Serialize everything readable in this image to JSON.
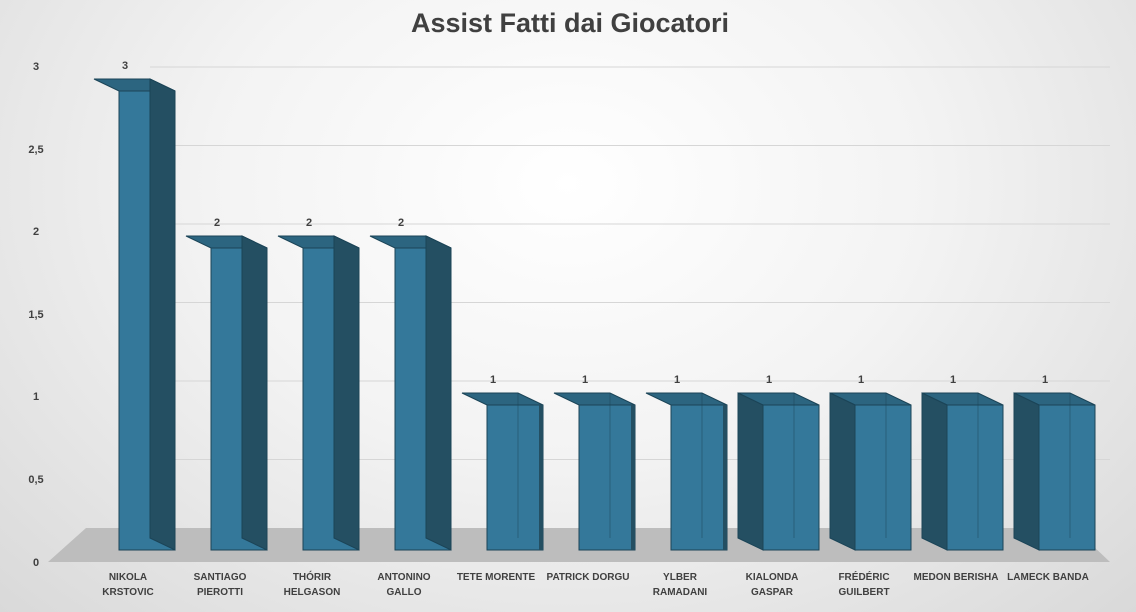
{
  "chart_data": {
    "type": "bar",
    "title": "Assist Fatti dai Giocatori",
    "xlabel": "",
    "ylabel": "",
    "categories": [
      [
        "NIKOLA",
        "KRSTOVIC"
      ],
      [
        "SANTIAGO",
        "PIEROTTI"
      ],
      [
        "THÓRIR",
        "HELGASON"
      ],
      [
        "ANTONINO",
        "GALLO"
      ],
      [
        "TETE MORENTE"
      ],
      [
        "PATRICK DORGU"
      ],
      [
        "YLBER",
        "RAMADANI"
      ],
      [
        "KIALONDA",
        "GASPAR"
      ],
      [
        "FRÉDÉRIC",
        "GUILBERT"
      ],
      [
        "MEDON BERISHA"
      ],
      [
        "LAMECK BANDA"
      ]
    ],
    "values": [
      3,
      2,
      2,
      2,
      1,
      1,
      1,
      1,
      1,
      1,
      1
    ],
    "data_labels": [
      "3",
      "2",
      "2",
      "2",
      "1",
      "1",
      "1",
      "1",
      "1",
      "1",
      "1"
    ],
    "ylim": [
      0,
      3
    ],
    "yticks": [
      0,
      0.5,
      1,
      1.5,
      2,
      2.5,
      3
    ],
    "ytick_labels": [
      "0",
      "0,5",
      "1",
      "1,5",
      "2",
      "2,5",
      "3"
    ],
    "grid": true,
    "legend": "none",
    "style": "3d-column",
    "colors": {
      "bar_front": "#34789a",
      "bar_side": "#244f62",
      "bar_top": "#2c6580",
      "bar_edge": "#1b4457",
      "floor": "#bdbdbd",
      "gridline": "#d6d6d6",
      "text": "#404040"
    }
  }
}
